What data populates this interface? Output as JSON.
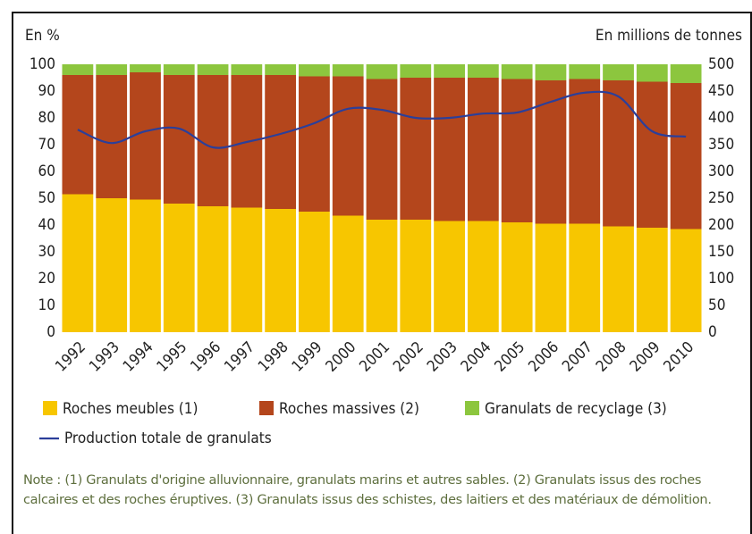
{
  "chart_data": {
    "type": "bar",
    "stacked": true,
    "y_label": "En %",
    "y2_label": "En millions de tonnes",
    "categories": [
      "1992",
      "1993",
      "1994",
      "1995",
      "1996",
      "1997",
      "1998",
      "1999",
      "2000",
      "2001",
      "2002",
      "2003",
      "2004",
      "2005",
      "2006",
      "2007",
      "2008",
      "2009",
      "2010"
    ],
    "series": [
      {
        "name": "Roches meubles (1)",
        "color": "#f7c600",
        "values": [
          51.5,
          50,
          49.5,
          48,
          47,
          46.5,
          46,
          45,
          43.5,
          42,
          42,
          41.5,
          41.5,
          41,
          40.5,
          40.5,
          39.5,
          39,
          38.5
        ]
      },
      {
        "name": "Roches massives (2)",
        "color": "#b4461c",
        "values": [
          44.5,
          46,
          47.5,
          48,
          49,
          49.5,
          50,
          50.5,
          52,
          52.5,
          53,
          53.5,
          53.5,
          53.5,
          53.5,
          54,
          54.5,
          54.5,
          54.5
        ]
      },
      {
        "name": "Granulats de recyclage (3)",
        "color": "#8cc63e",
        "values": [
          4,
          4,
          3,
          4,
          4,
          4,
          4,
          4.5,
          4.5,
          5.5,
          5,
          5,
          5,
          5.5,
          6,
          5.5,
          6,
          6.5,
          7
        ]
      },
      {
        "name": "Production totale de granulats",
        "color": "#2b3f9a",
        "type": "line",
        "axis": "y2",
        "values": [
          378,
          353,
          375,
          380,
          345,
          355,
          370,
          390,
          417,
          415,
          400,
          400,
          408,
          410,
          430,
          447,
          440,
          375,
          365
        ]
      }
    ],
    "ylim": [
      0,
      100
    ],
    "yticks": [
      0,
      10,
      20,
      30,
      40,
      50,
      60,
      70,
      80,
      90,
      100
    ],
    "y2lim": [
      0,
      500
    ],
    "y2ticks": [
      0,
      50,
      100,
      150,
      200,
      250,
      300,
      350,
      400,
      450,
      500
    ],
    "grid": false,
    "note": "Note : (1) Granulats d'origine alluvionnaire, granulats marins et autres sables. (2) Granulats issus des roches calcaires et des roches éruptives. (3) Granulats issus des schistes, des laitiers et des matériaux de démolition."
  }
}
